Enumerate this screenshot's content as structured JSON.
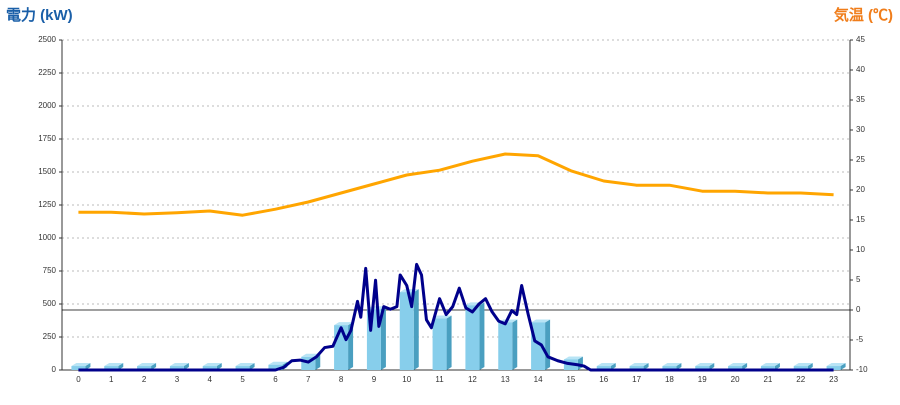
{
  "chart_data": {
    "type": "bar",
    "y_title": "電力 (kW)",
    "y2_title": "気温 (℃)",
    "categories": [
      "0",
      "1",
      "2",
      "3",
      "4",
      "5",
      "6",
      "7",
      "8",
      "9",
      "10",
      "11",
      "12",
      "13",
      "14",
      "15",
      "16",
      "17",
      "18",
      "19",
      "20",
      "21",
      "22",
      "23"
    ],
    "ylim": [
      0,
      2500
    ],
    "yticks": [
      0,
      250,
      500,
      750,
      1000,
      1250,
      1500,
      1750,
      2000,
      2250,
      2500
    ],
    "y2lim": [
      -10,
      45
    ],
    "y2ticks": [
      -10,
      -5,
      0,
      5,
      10,
      15,
      20,
      25,
      30,
      35,
      40,
      45
    ],
    "grid": true,
    "series": [
      {
        "type": "bar",
        "color": "#87ceeb",
        "values": [
          30,
          30,
          30,
          30,
          30,
          30,
          40,
          100,
          340,
          460,
          590,
          390,
          490,
          360,
          360,
          80,
          30,
          30,
          30,
          30,
          30,
          30,
          30,
          30
        ]
      },
      {
        "type": "line",
        "color": "#00008b",
        "x": [
          0,
          6,
          6.25,
          6.5,
          6.75,
          7,
          7.25,
          7.5,
          7.75,
          8,
          8.15,
          8.3,
          8.5,
          8.6,
          8.75,
          8.9,
          9.05,
          9.15,
          9.3,
          9.5,
          9.7,
          9.8,
          10,
          10.15,
          10.3,
          10.45,
          10.6,
          10.75,
          11,
          11.2,
          11.4,
          11.6,
          11.8,
          12,
          12.2,
          12.4,
          12.6,
          12.8,
          13,
          13.2,
          13.35,
          13.5,
          13.7,
          13.9,
          14.1,
          14.3,
          14.6,
          14.9,
          15.2,
          15.4,
          15.6,
          16,
          23
        ],
        "values": [
          0,
          0,
          20,
          70,
          75,
          60,
          100,
          170,
          180,
          320,
          230,
          300,
          520,
          400,
          770,
          300,
          680,
          330,
          480,
          460,
          480,
          720,
          640,
          480,
          800,
          720,
          380,
          320,
          540,
          420,
          480,
          620,
          470,
          440,
          500,
          540,
          440,
          370,
          350,
          450,
          420,
          640,
          420,
          220,
          190,
          100,
          70,
          50,
          40,
          30,
          0,
          0,
          0
        ]
      },
      {
        "type": "line",
        "axis": "y2",
        "color": "#ffa500",
        "values": [
          16.3,
          16.3,
          16,
          16.2,
          16.5,
          15.8,
          16.8,
          18,
          19.5,
          21,
          22.5,
          23.3,
          24.8,
          26,
          25.7,
          23.2,
          21.5,
          20.8,
          20.8,
          19.8,
          19.8,
          19.5,
          19.5,
          19.2
        ]
      }
    ]
  }
}
